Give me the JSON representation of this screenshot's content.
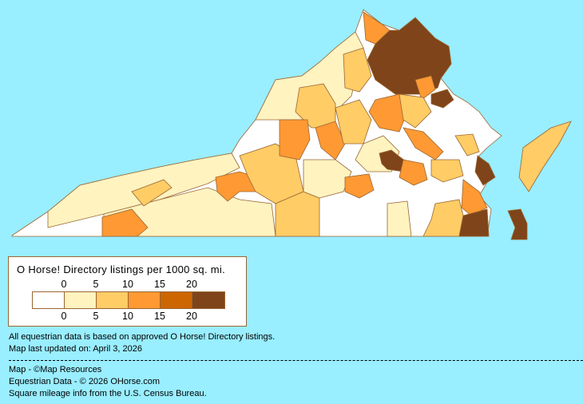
{
  "legend": {
    "title": "O Horse! Directory listings per 1000 sq. mi.",
    "ticks_top": [
      "0",
      "5",
      "10",
      "15",
      "20"
    ],
    "ticks_bottom": [
      "0",
      "5",
      "10",
      "15",
      "20"
    ],
    "colors": [
      "#FFFFFF",
      "#FFF3C0",
      "#FFCC66",
      "#FF9933",
      "#CC6600",
      "#7F4419"
    ]
  },
  "notes": {
    "data_basis": "All equestrian data is based on approved O Horse! Directory listings.",
    "updated": "Map last updated on: April 3, 2026"
  },
  "credits": {
    "map": "Map - ©Map Resources",
    "equestrian": "Equestrian Data - © 2026 OHorse.com",
    "census": "Square mileage info from the U.S. Census Bureau."
  },
  "colors": {
    "background": "#99EEFF",
    "border": "#996633"
  }
}
